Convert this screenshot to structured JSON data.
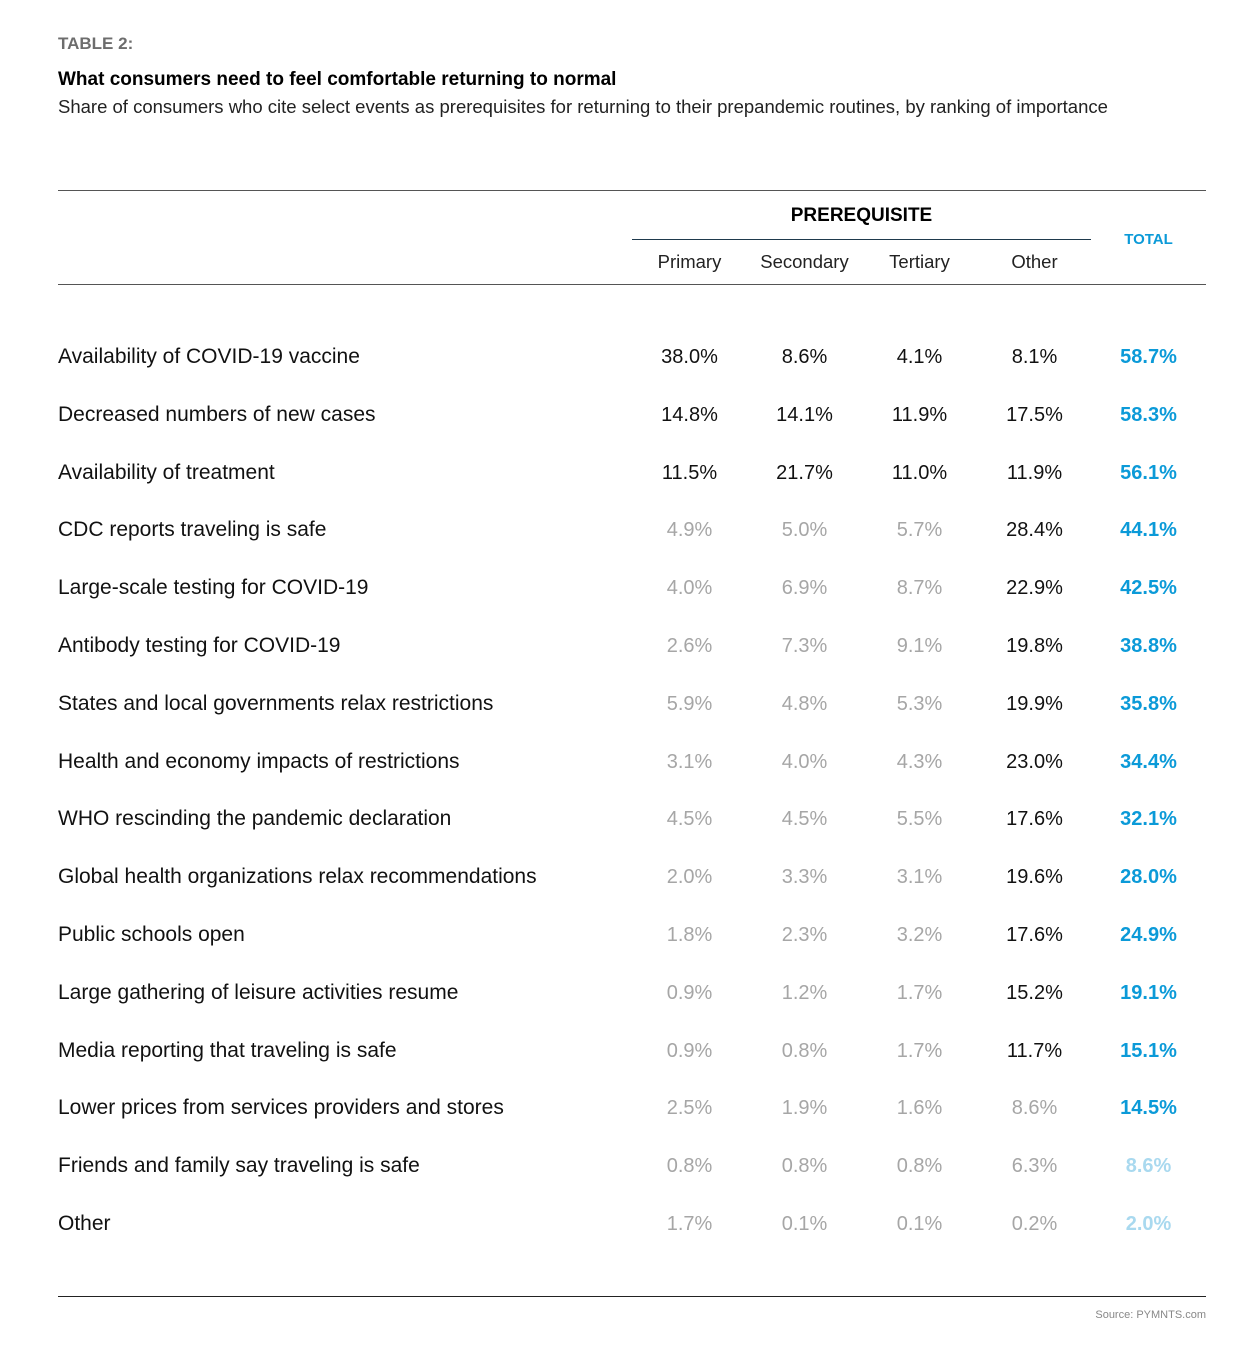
{
  "header": {
    "table_label": "TABLE 2:",
    "title": "What consumers need to feel comfortable returning to normal",
    "subtitle": "Share of consumers who cite select events as prerequisites for returning to their prepandemic routines, by ranking of importance"
  },
  "colors": {
    "accent": "#0b9ad8",
    "accent_faint": "#a9d9ef",
    "emphasis_text": "#111111",
    "muted_text": "#a6a6a6"
  },
  "chart_data": {
    "type": "table",
    "title": "What consumers need to feel comfortable returning to normal",
    "group_header": "PREREQUISITE",
    "columns": [
      "Primary",
      "Secondary",
      "Tertiary",
      "Other"
    ],
    "total_header": "TOTAL",
    "rows": [
      {
        "label": "Availability of COVID-19 vaccine",
        "values": [
          "38.0%",
          "8.6%",
          "4.1%",
          "8.1%"
        ],
        "total": "58.7%",
        "emphasis": [
          true,
          true,
          true,
          true
        ],
        "total_faint": false
      },
      {
        "label": "Decreased numbers of new cases",
        "values": [
          "14.8%",
          "14.1%",
          "11.9%",
          "17.5%"
        ],
        "total": "58.3%",
        "emphasis": [
          true,
          true,
          true,
          true
        ],
        "total_faint": false
      },
      {
        "label": "Availability of treatment",
        "values": [
          "11.5%",
          "21.7%",
          "11.0%",
          "11.9%"
        ],
        "total": "56.1%",
        "emphasis": [
          true,
          true,
          true,
          true
        ],
        "total_faint": false
      },
      {
        "label": "CDC reports traveling is safe",
        "values": [
          "4.9%",
          "5.0%",
          "5.7%",
          "28.4%"
        ],
        "total": "44.1%",
        "emphasis": [
          false,
          false,
          false,
          true
        ],
        "total_faint": false
      },
      {
        "label": "Large-scale testing for COVID-19",
        "values": [
          "4.0%",
          "6.9%",
          "8.7%",
          "22.9%"
        ],
        "total": "42.5%",
        "emphasis": [
          false,
          false,
          false,
          true
        ],
        "total_faint": false
      },
      {
        "label": "Antibody testing for COVID-19",
        "values": [
          "2.6%",
          "7.3%",
          "9.1%",
          "19.8%"
        ],
        "total": "38.8%",
        "emphasis": [
          false,
          false,
          false,
          true
        ],
        "total_faint": false
      },
      {
        "label": "States and local governments relax restrictions",
        "values": [
          "5.9%",
          "4.8%",
          "5.3%",
          "19.9%"
        ],
        "total": "35.8%",
        "emphasis": [
          false,
          false,
          false,
          true
        ],
        "total_faint": false
      },
      {
        "label": "Health and economy impacts of restrictions",
        "values": [
          "3.1%",
          "4.0%",
          "4.3%",
          "23.0%"
        ],
        "total": "34.4%",
        "emphasis": [
          false,
          false,
          false,
          true
        ],
        "total_faint": false
      },
      {
        "label": "WHO rescinding the pandemic declaration",
        "values": [
          "4.5%",
          "4.5%",
          "5.5%",
          "17.6%"
        ],
        "total": "32.1%",
        "emphasis": [
          false,
          false,
          false,
          true
        ],
        "total_faint": false
      },
      {
        "label": "Global health organizations relax recommendations",
        "values": [
          "2.0%",
          "3.3%",
          "3.1%",
          "19.6%"
        ],
        "total": "28.0%",
        "emphasis": [
          false,
          false,
          false,
          true
        ],
        "total_faint": false
      },
      {
        "label": "Public schools open",
        "values": [
          "1.8%",
          "2.3%",
          "3.2%",
          "17.6%"
        ],
        "total": "24.9%",
        "emphasis": [
          false,
          false,
          false,
          true
        ],
        "total_faint": false
      },
      {
        "label": "Large gathering of leisure activities resume",
        "values": [
          "0.9%",
          "1.2%",
          "1.7%",
          "15.2%"
        ],
        "total": "19.1%",
        "emphasis": [
          false,
          false,
          false,
          true
        ],
        "total_faint": false
      },
      {
        "label": "Media reporting that traveling is safe",
        "values": [
          "0.9%",
          "0.8%",
          "1.7%",
          "11.7%"
        ],
        "total": "15.1%",
        "emphasis": [
          false,
          false,
          false,
          true
        ],
        "total_faint": false
      },
      {
        "label": "Lower prices from services providers and stores",
        "values": [
          "2.5%",
          "1.9%",
          "1.6%",
          "8.6%"
        ],
        "total": "14.5%",
        "emphasis": [
          false,
          false,
          false,
          false
        ],
        "total_faint": false
      },
      {
        "label": "Friends and family say traveling is safe",
        "values": [
          "0.8%",
          "0.8%",
          "0.8%",
          "6.3%"
        ],
        "total": "8.6%",
        "emphasis": [
          false,
          false,
          false,
          false
        ],
        "total_faint": true
      },
      {
        "label": "Other",
        "values": [
          "1.7%",
          "0.1%",
          "0.1%",
          "0.2%"
        ],
        "total": "2.0%",
        "emphasis": [
          false,
          false,
          false,
          false
        ],
        "total_faint": true
      }
    ]
  },
  "footer": {
    "source": "Source: PYMNTS.com"
  }
}
